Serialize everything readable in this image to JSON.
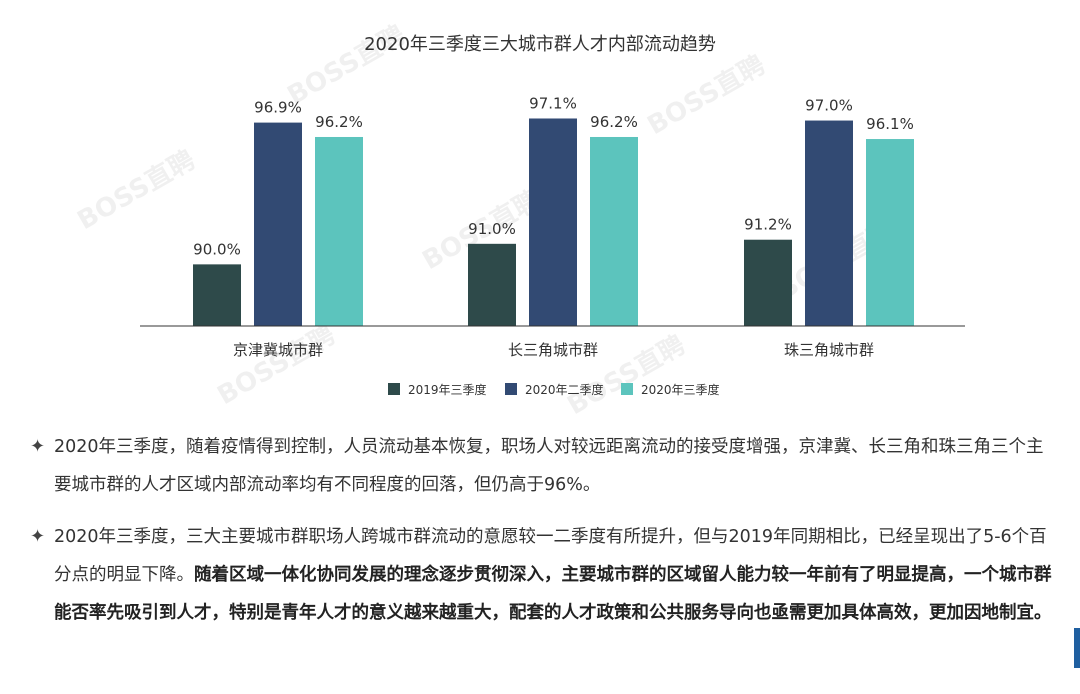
{
  "chart_data": {
    "type": "bar",
    "title": "2020年三季度三大城市群人才内部流动趋势",
    "categories": [
      "京津冀城市群",
      "长三角城市群",
      "珠三角城市群"
    ],
    "series": [
      {
        "name": "2019年三季度",
        "color": "#2e4a4a",
        "values": [
          90.0,
          91.0,
          91.2
        ],
        "labels": [
          "90.0%",
          "91.0%",
          "91.2%"
        ]
      },
      {
        "name": "2020年二季度",
        "color": "#324a73",
        "values": [
          96.9,
          97.1,
          97.0
        ],
        "labels": [
          "96.9%",
          "97.1%",
          "97.0%"
        ]
      },
      {
        "name": "2020年三季度",
        "color": "#5cc4bd",
        "values": [
          96.2,
          96.2,
          96.1
        ],
        "labels": [
          "96.2%",
          "96.2%",
          "96.1%"
        ]
      }
    ],
    "ylim": [
      87,
      98
    ],
    "legend_position": "bottom"
  },
  "watermark_text": "BOSS直聘",
  "bullet_icon": "four-point-star-icon",
  "paragraphs": [
    {
      "normal": "2020年三季度，随着疫情得到控制，人员流动基本恢复，职场人对较远距离流动的接受度增强，京津冀、长三角和珠三角三个主要城市群的人才区域内部流动率均有不同程度的回落，但仍高于96%。",
      "bold": ""
    },
    {
      "normal": "2020年三季度，三大主要城市群职场人跨城市群流动的意愿较一二季度有所提升，但与2019年同期相比，已经呈现出了5-6个百分点的明显下降。",
      "bold": "随着区域一体化协同发展的理念逐步贯彻深入，主要城市群的区域留人能力较一年前有了明显提高，一个城市群能否率先吸引到人才，特别是青年人才的意义越来越重大，配套的人才政策和公共服务导向也亟需更加具体高效，更加因地制宜。"
    }
  ]
}
